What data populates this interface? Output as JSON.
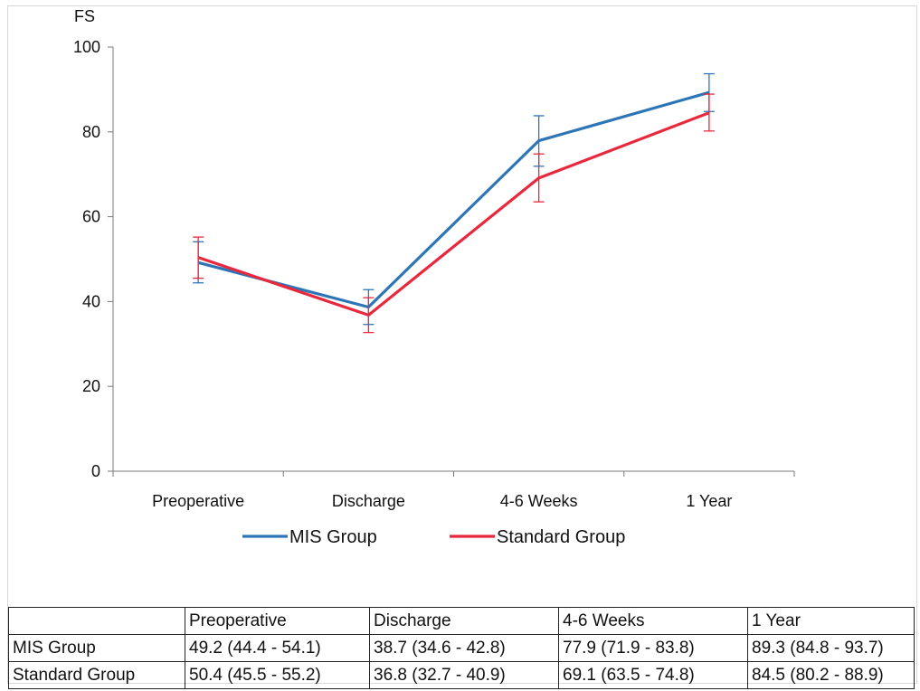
{
  "chart_data": {
    "type": "line",
    "title": "",
    "ylabel": "FS",
    "xlabel": "",
    "ylim": [
      0,
      100
    ],
    "yticks": [
      "0",
      "20",
      "40",
      "60",
      "80",
      "100"
    ],
    "categories": [
      "Preoperative",
      "Discharge",
      "4-6 Weeks",
      "1 Year"
    ],
    "series": [
      {
        "name": "MIS Group",
        "color": "#2e75b6",
        "values": [
          49.2,
          38.7,
          77.9,
          89.3
        ],
        "ci_low": [
          44.4,
          34.6,
          71.9,
          84.8
        ],
        "ci_high": [
          54.1,
          42.8,
          83.8,
          93.7
        ]
      },
      {
        "name": "Standard Group",
        "color": "#e8283c",
        "values": [
          50.4,
          36.8,
          69.1,
          84.5
        ],
        "ci_low": [
          45.5,
          32.7,
          63.5,
          80.2
        ],
        "ci_high": [
          55.2,
          40.9,
          74.8,
          88.9
        ]
      }
    ],
    "grid": false,
    "legend": "bottom"
  },
  "table": {
    "headers": [
      "",
      "Preoperative",
      "Discharge",
      "4-6 Weeks",
      "1 Year"
    ],
    "rows": [
      {
        "label": "MIS Group",
        "cells": [
          "49.2 (44.4 - 54.1)",
          "38.7 (34.6 - 42.8)",
          "77.9 (71.9 - 83.8)",
          "89.3 (84.8 - 93.7)"
        ]
      },
      {
        "label": "Standard Group",
        "cells": [
          "50.4 (45.5 - 55.2)",
          "36.8 (32.7 - 40.9)",
          "69.1 (63.5 - 74.8)",
          "84.5 (80.2 - 88.9)"
        ]
      }
    ]
  }
}
